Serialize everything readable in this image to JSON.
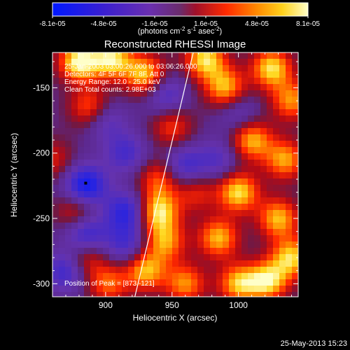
{
  "colorbar": {
    "ticks": [
      "-8.1e-05",
      "-4.8e-05",
      "-1.6e-05",
      "1.6e-05",
      "4.8e-05",
      "8.1e-05"
    ],
    "unit_prefix": "(photons cm",
    "unit_exp1": "-2",
    "unit_mid": " s",
    "unit_exp2": "-1",
    "unit_suffix": " asec",
    "unit_exp3": "-2",
    "unit_close": ")"
  },
  "header": {
    "title": "Reconstructed RHESSI Image",
    "time_range": "25-Jan-2003 03:00:26.000 to 03:06:26.000",
    "detectors": "Detectors: 4F 5F 6F 7F 8F, Att 0",
    "energy": "Energy Range: 12.0 - 25.0 keV",
    "clean": "Clean    Total counts: 2.98E+03"
  },
  "annotation": {
    "peak": "Position of Peak = [873,-121]"
  },
  "footer": {
    "timestamp": "25-May-2013 15:23"
  },
  "chart_data": {
    "type": "heatmap",
    "title": "Reconstructed RHESSI Image",
    "xlabel": "Heliocentric X (arcsec)",
    "ylabel": "Heliocentric Y (arcsec)",
    "xlim": [
      860,
      1045
    ],
    "ylim": [
      -310,
      -123
    ],
    "x_ticks": [
      900,
      950,
      1000
    ],
    "y_ticks": [
      -150,
      -200,
      -250,
      -300
    ],
    "color_range": [
      -8.1e-05,
      8.1e-05
    ],
    "peak_position": [
      873,
      -121
    ],
    "limb_line": [
      [
        922,
        -310
      ],
      [
        966,
        -123
      ]
    ],
    "marker_point": [
      885,
      -223
    ],
    "hot_spots": [
      [
        880,
        -130,
        1.0
      ],
      [
        905,
        -128,
        0.9
      ],
      [
        930,
        -140,
        0.85
      ],
      [
        975,
        -128,
        0.9
      ],
      [
        990,
        -150,
        0.8
      ],
      [
        1025,
        -135,
        0.9
      ],
      [
        1040,
        -160,
        0.7
      ],
      [
        888,
        -165,
        0.6
      ],
      [
        950,
        -180,
        0.5
      ],
      [
        1010,
        -190,
        0.8
      ],
      [
        1035,
        -205,
        0.75
      ],
      [
        1000,
        -230,
        0.9
      ],
      [
        1030,
        -250,
        0.8
      ],
      [
        940,
        -245,
        0.9
      ],
      [
        945,
        -268,
        0.7
      ],
      [
        985,
        -265,
        0.8
      ],
      [
        1040,
        -280,
        0.85
      ],
      [
        1000,
        -300,
        0.8
      ],
      [
        960,
        -300,
        0.7
      ],
      [
        930,
        -290,
        0.8
      ],
      [
        885,
        -280,
        0.5
      ],
      [
        902,
        -300,
        0.6
      ],
      [
        940,
        -220,
        0.55
      ],
      [
        878,
        -245,
        0.5
      ],
      [
        1022,
        -298,
        0.9
      ],
      [
        968,
        -230,
        0.45
      ],
      [
        860,
        -205,
        0.4
      ]
    ],
    "cold_spots": [
      [
        885,
        -225,
        -0.9
      ],
      [
        915,
        -245,
        -0.7
      ],
      [
        885,
        -262,
        -0.7
      ],
      [
        870,
        -290,
        -0.6
      ],
      [
        915,
        -200,
        -0.5
      ],
      [
        960,
        -210,
        -0.55
      ],
      [
        945,
        -155,
        -0.5
      ],
      [
        985,
        -205,
        -0.4
      ],
      [
        915,
        -270,
        -0.5
      ],
      [
        1000,
        -170,
        -0.35
      ],
      [
        900,
        -175,
        -0.4
      ]
    ]
  }
}
